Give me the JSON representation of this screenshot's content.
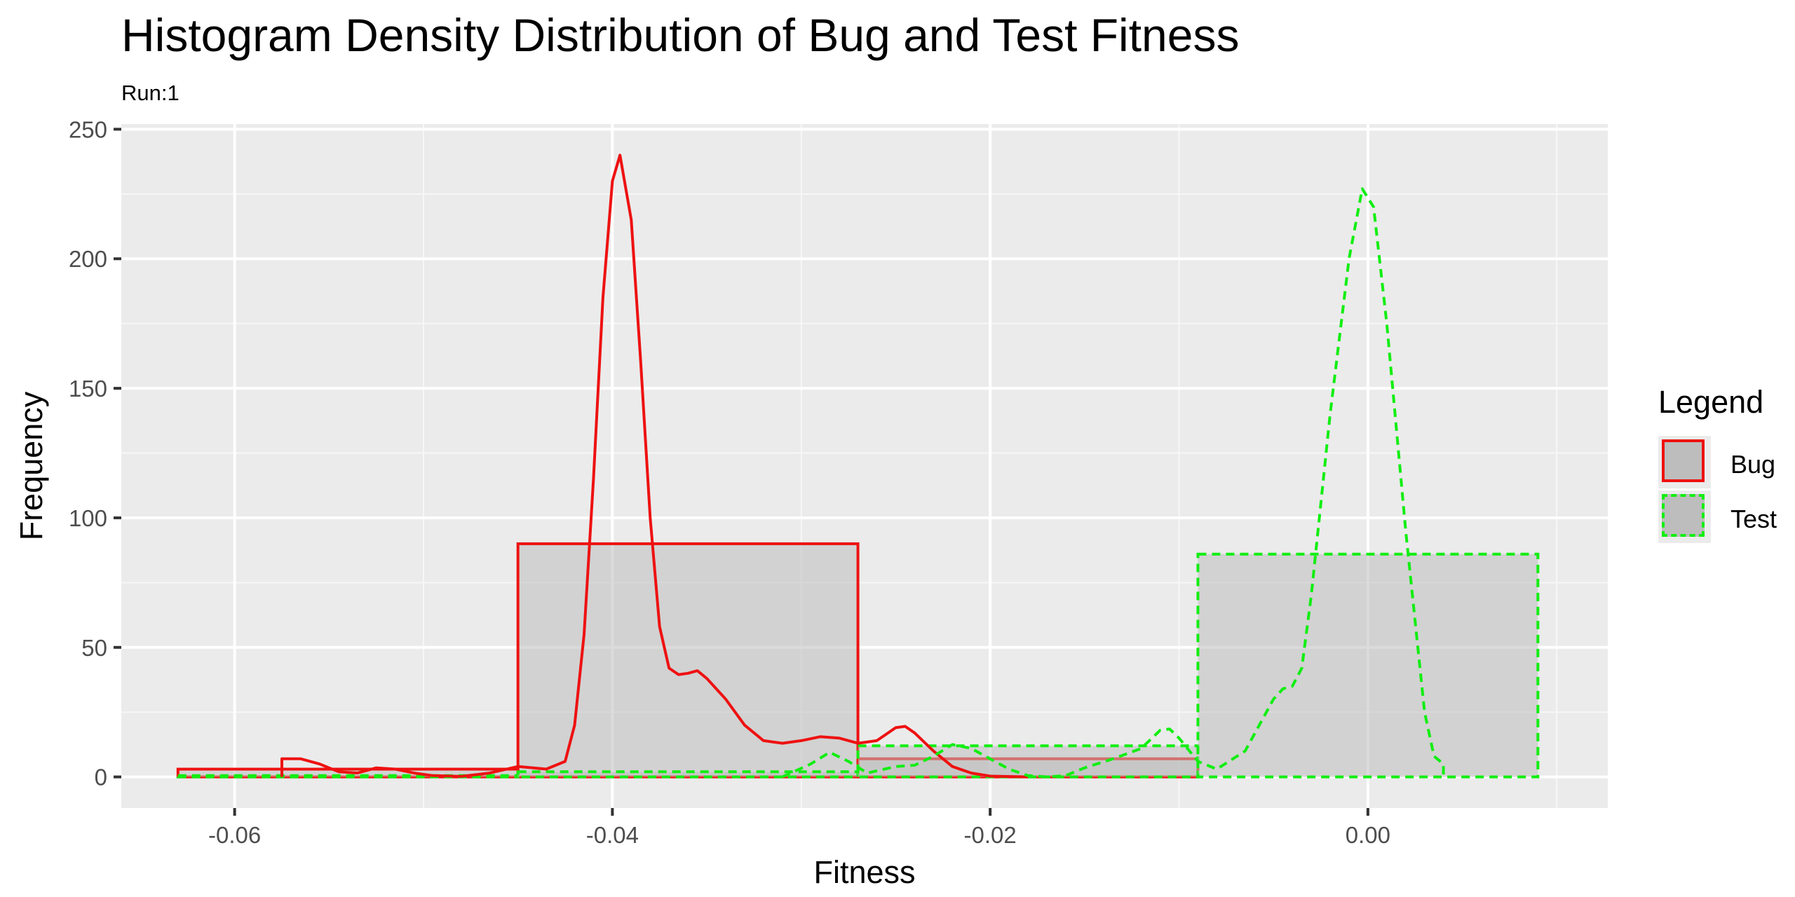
{
  "title": "Histogram Density Distribution of Bug and Test Fitness",
  "subtitle": "Run:1",
  "legend": {
    "title": "Legend",
    "items": [
      {
        "label": "Bug",
        "color": "#ee1111",
        "linetype": "solid"
      },
      {
        "label": "Test",
        "color": "#11ee11",
        "linetype": "dashed"
      }
    ]
  },
  "chart_data": {
    "type": "histogram+density",
    "xlabel": "Fitness",
    "ylabel": "Frequency",
    "xlim": [
      -0.066,
      0.0127
    ],
    "ylim": [
      -12,
      252
    ],
    "xticks": [
      -0.06,
      -0.04,
      -0.02,
      0.0
    ],
    "xtick_labels": [
      "-0.06",
      "-0.04",
      "-0.02",
      "0.00"
    ],
    "yticks": [
      0,
      50,
      100,
      150,
      200,
      250
    ],
    "ytick_labels": [
      "0",
      "50",
      "100",
      "150",
      "200",
      "250"
    ],
    "grid": true,
    "legend_position": "right",
    "panel_background": "#ebebeb",
    "bar_fill": "#bdbdbd",
    "series": [
      {
        "name": "Bug",
        "color": "#ee1111",
        "linetype": "solid",
        "histogram": {
          "bins": [
            [
              -0.063,
              -0.045
            ],
            [
              -0.045,
              -0.027
            ],
            [
              -0.027,
              -0.009
            ]
          ],
          "values": [
            3,
            90,
            7
          ]
        },
        "density_points": [
          [
            -0.0575,
            0
          ],
          [
            -0.0575,
            7
          ],
          [
            -0.0565,
            7
          ],
          [
            -0.0555,
            5
          ],
          [
            -0.0545,
            2
          ],
          [
            -0.0535,
            1.5
          ],
          [
            -0.0525,
            3.5
          ],
          [
            -0.0515,
            3
          ],
          [
            -0.0505,
            1.5
          ],
          [
            -0.0495,
            0.5
          ],
          [
            -0.048,
            0.2
          ],
          [
            -0.0465,
            1.5
          ],
          [
            -0.045,
            4
          ],
          [
            -0.0435,
            3
          ],
          [
            -0.0425,
            6
          ],
          [
            -0.042,
            20
          ],
          [
            -0.0415,
            55
          ],
          [
            -0.041,
            115
          ],
          [
            -0.0405,
            185
          ],
          [
            -0.04,
            230
          ],
          [
            -0.0396,
            240
          ],
          [
            -0.039,
            215
          ],
          [
            -0.0385,
            160
          ],
          [
            -0.038,
            100
          ],
          [
            -0.0375,
            58
          ],
          [
            -0.037,
            42
          ],
          [
            -0.0365,
            39.5
          ],
          [
            -0.036,
            40
          ],
          [
            -0.0355,
            41
          ],
          [
            -0.035,
            38
          ],
          [
            -0.034,
            30
          ],
          [
            -0.033,
            20
          ],
          [
            -0.032,
            14
          ],
          [
            -0.031,
            13
          ],
          [
            -0.03,
            14
          ],
          [
            -0.029,
            15.5
          ],
          [
            -0.028,
            15
          ],
          [
            -0.027,
            13
          ],
          [
            -0.026,
            14
          ],
          [
            -0.025,
            19
          ],
          [
            -0.0245,
            19.5
          ],
          [
            -0.024,
            17
          ],
          [
            -0.023,
            10
          ],
          [
            -0.022,
            4
          ],
          [
            -0.021,
            1.5
          ],
          [
            -0.02,
            0.3
          ],
          [
            -0.018,
            0
          ]
        ]
      },
      {
        "name": "Test",
        "color": "#11ee11",
        "linetype": "dashed",
        "histogram": {
          "bins": [
            [
              -0.063,
              -0.045
            ],
            [
              -0.045,
              -0.027
            ],
            [
              -0.027,
              -0.009
            ],
            [
              -0.009,
              0.009
            ]
          ],
          "values": [
            0.5,
            2,
            12,
            86
          ]
        },
        "density_points": [
          [
            -0.031,
            0
          ],
          [
            -0.0295,
            5
          ],
          [
            -0.0285,
            9.5
          ],
          [
            -0.0275,
            6
          ],
          [
            -0.0265,
            1.5
          ],
          [
            -0.025,
            4
          ],
          [
            -0.024,
            4.5
          ],
          [
            -0.023,
            8
          ],
          [
            -0.022,
            12.5
          ],
          [
            -0.021,
            11
          ],
          [
            -0.02,
            7
          ],
          [
            -0.019,
            3
          ],
          [
            -0.018,
            0.5
          ],
          [
            -0.017,
            0
          ],
          [
            -0.016,
            0.5
          ],
          [
            -0.015,
            3.5
          ],
          [
            -0.0135,
            7
          ],
          [
            -0.012,
            11
          ],
          [
            -0.011,
            18
          ],
          [
            -0.0105,
            18.5
          ],
          [
            -0.01,
            15
          ],
          [
            -0.009,
            6
          ],
          [
            -0.008,
            3
          ],
          [
            -0.0065,
            10
          ],
          [
            -0.005,
            30
          ],
          [
            -0.0045,
            34
          ],
          [
            -0.004,
            35
          ],
          [
            -0.0035,
            42
          ],
          [
            -0.003,
            70
          ],
          [
            -0.002,
            140
          ],
          [
            -0.001,
            200
          ],
          [
            -0.0003,
            227
          ],
          [
            0.0003,
            220
          ],
          [
            0.001,
            175
          ],
          [
            0.002,
            95
          ],
          [
            0.003,
            25
          ],
          [
            0.0035,
            8
          ],
          [
            0.004,
            5
          ],
          [
            0.004,
            0
          ]
        ]
      }
    ]
  }
}
